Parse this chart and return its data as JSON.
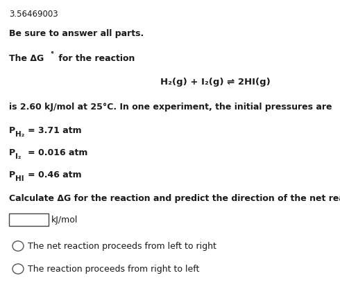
{
  "background_color": "#ffffff",
  "top_number": "3.56469003",
  "line1": "Be sure to answer all parts.",
  "reaction": "H₂(g) + I₂(g) ⇌ 2HI(g)",
  "line3": "is 2.60 kJ/mol at 25°C. In one experiment, the initial pressures are",
  "p_h2_val": "= 3.71 atm",
  "p_i2_val": "= 0.016 atm",
  "p_hi_val": "= 0.46 atm",
  "calc_line": "Calculate ΔG for the reaction and predict the direction of the net reaction.",
  "unit_label": "kJ/mol",
  "option1": "The net reaction proceeds from left to right",
  "option2": "The reaction proceeds from right to left",
  "font_size_top": 8.5,
  "font_size_body": 9.0,
  "font_size_reaction": 9.5,
  "font_size_sub": 7.5,
  "text_color": "#1a1a1a",
  "fig_w": 4.9,
  "fig_h": 4.43,
  "dpi": 100
}
